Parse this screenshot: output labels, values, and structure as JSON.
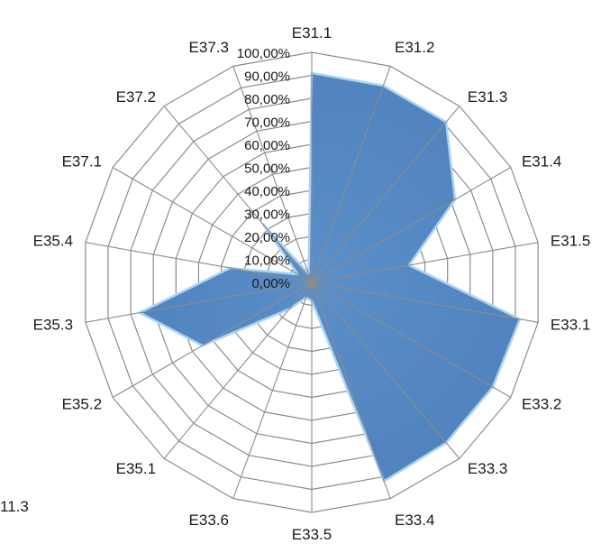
{
  "chart_data": {
    "type": "radar",
    "categories": [
      "E31.1",
      "E31.2",
      "E31.3",
      "E31.4",
      "E31.5",
      "E33.1",
      "E33.2",
      "E33.3",
      "E33.4",
      "E33.5",
      "E33.6",
      "E35.1",
      "E35.2",
      "E35.3",
      "E35.4",
      "E37.1",
      "E37.2",
      "E37.3"
    ],
    "values": [
      0.91,
      0.91,
      0.91,
      0.72,
      0.43,
      0.92,
      0.91,
      0.91,
      0.92,
      0.08,
      0.07,
      0.15,
      0.55,
      0.76,
      0.36,
      0.07,
      0.33,
      0.04
    ],
    "tick_labels": [
      "0,00%",
      "10,00%",
      "20,00%",
      "30,00%",
      "40,00%",
      "50,00%",
      "60,00%",
      "70,00%",
      "80,00%",
      "90,00%",
      "100,00%"
    ],
    "rmin": 0,
    "rmax": 1,
    "fill_color": "#4f81bd",
    "edge_color": "#a9d3f5",
    "grid_color": "#8c8c8c",
    "grid": true
  },
  "stray_label": "11.3"
}
